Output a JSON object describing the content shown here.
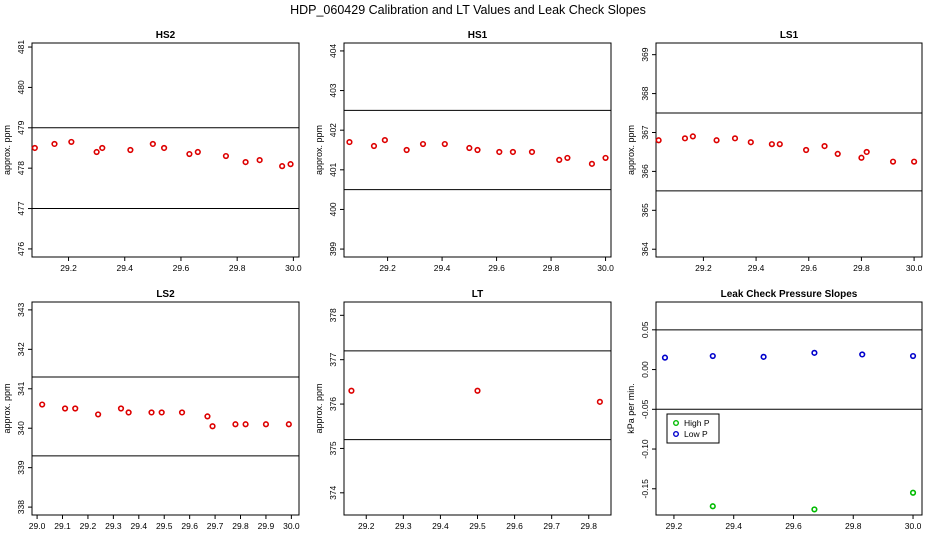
{
  "figure": {
    "title": "HDP_060429  Calibration and LT Values and Leak Check Slopes"
  },
  "colors": {
    "cal_points": "#dd0000",
    "high_p": "#00bb00",
    "low_p": "#0000cc",
    "ref_line": "#000000"
  },
  "chart_data": [
    {
      "type": "scatter",
      "title": "HS2",
      "ylabel": "approx. ppm",
      "xlim": [
        29.07,
        30.02
      ],
      "ylim": [
        475.8,
        481.1
      ],
      "xticks": [
        29.2,
        29.4,
        29.6,
        29.8,
        30.0
      ],
      "xtick_labels": [
        "29.2",
        "29.4",
        "29.6",
        "29.8",
        "30.0"
      ],
      "yticks": [
        476,
        477,
        478,
        479,
        480,
        481
      ],
      "ytick_labels": [
        "476",
        "477",
        "478",
        "479",
        "480",
        "481"
      ],
      "hlines": [
        479.0,
        477.0
      ],
      "series": [
        {
          "color": "#dd0000",
          "x": [
            29.08,
            29.15,
            29.21,
            29.3,
            29.32,
            29.42,
            29.5,
            29.54,
            29.63,
            29.66,
            29.76,
            29.83,
            29.88,
            29.96,
            29.99
          ],
          "y": [
            478.5,
            478.6,
            478.65,
            478.4,
            478.5,
            478.45,
            478.6,
            478.5,
            478.35,
            478.4,
            478.3,
            478.15,
            478.2,
            478.05,
            478.1
          ]
        }
      ]
    },
    {
      "type": "scatter",
      "title": "HS1",
      "ylabel": "approx. ppm",
      "xlim": [
        29.04,
        30.02
      ],
      "ylim": [
        398.8,
        404.2
      ],
      "xticks": [
        29.2,
        29.4,
        29.6,
        29.8,
        30.0
      ],
      "xtick_labels": [
        "29.2",
        "29.4",
        "29.6",
        "29.8",
        "30.0"
      ],
      "yticks": [
        399,
        400,
        401,
        402,
        403,
        404
      ],
      "ytick_labels": [
        "399",
        "400",
        "401",
        "402",
        "403",
        "404"
      ],
      "hlines": [
        402.5,
        400.5
      ],
      "series": [
        {
          "color": "#dd0000",
          "x": [
            29.06,
            29.15,
            29.19,
            29.27,
            29.33,
            29.41,
            29.5,
            29.53,
            29.61,
            29.66,
            29.73,
            29.83,
            29.86,
            29.95,
            30.0
          ],
          "y": [
            401.7,
            401.6,
            401.75,
            401.5,
            401.65,
            401.65,
            401.55,
            401.5,
            401.45,
            401.45,
            401.45,
            401.25,
            401.3,
            401.15,
            401.3
          ]
        }
      ]
    },
    {
      "type": "scatter",
      "title": "LS1",
      "ylabel": "approx. ppm",
      "xlim": [
        29.02,
        30.03
      ],
      "ylim": [
        363.8,
        369.3
      ],
      "xticks": [
        29.2,
        29.4,
        29.6,
        29.8,
        30.0
      ],
      "xtick_labels": [
        "29.2",
        "29.4",
        "29.6",
        "29.8",
        "30.0"
      ],
      "yticks": [
        364,
        365,
        366,
        367,
        368,
        369
      ],
      "ytick_labels": [
        "364",
        "365",
        "366",
        "367",
        "368",
        "369"
      ],
      "hlines": [
        367.5,
        365.5
      ],
      "series": [
        {
          "color": "#dd0000",
          "x": [
            29.03,
            29.13,
            29.16,
            29.25,
            29.32,
            29.38,
            29.46,
            29.49,
            29.59,
            29.66,
            29.71,
            29.8,
            29.82,
            29.92,
            30.0
          ],
          "y": [
            366.8,
            366.85,
            366.9,
            366.8,
            366.85,
            366.75,
            366.7,
            366.7,
            366.55,
            366.65,
            366.45,
            366.35,
            366.5,
            366.25,
            366.25
          ]
        }
      ]
    },
    {
      "type": "scatter",
      "title": "LS2",
      "ylabel": "approx. ppm",
      "xlim": [
        28.98,
        30.03
      ],
      "ylim": [
        337.8,
        343.2
      ],
      "xticks": [
        29.0,
        29.1,
        29.2,
        29.3,
        29.4,
        29.5,
        29.6,
        29.7,
        29.8,
        29.9,
        30.0
      ],
      "xtick_labels": [
        "29.0",
        "29.1",
        "29.2",
        "29.3",
        "29.4",
        "29.5",
        "29.6",
        "29.7",
        "29.8",
        "29.9",
        "30.0"
      ],
      "yticks": [
        338,
        339,
        340,
        341,
        342,
        343
      ],
      "ytick_labels": [
        "338",
        "339",
        "340",
        "341",
        "342",
        "343"
      ],
      "hlines": [
        341.3,
        339.3
      ],
      "series": [
        {
          "color": "#dd0000",
          "x": [
            29.02,
            29.11,
            29.15,
            29.24,
            29.33,
            29.36,
            29.45,
            29.49,
            29.57,
            29.67,
            29.69,
            29.78,
            29.82,
            29.9,
            29.99
          ],
          "y": [
            340.6,
            340.5,
            340.5,
            340.35,
            340.5,
            340.4,
            340.4,
            340.4,
            340.4,
            340.3,
            340.05,
            340.1,
            340.1,
            340.1,
            340.1
          ]
        }
      ]
    },
    {
      "type": "scatter",
      "title": "LT",
      "ylabel": "approx. ppm",
      "xlim": [
        29.14,
        29.86
      ],
      "ylim": [
        373.5,
        378.3
      ],
      "xticks": [
        29.2,
        29.3,
        29.4,
        29.5,
        29.6,
        29.7,
        29.8
      ],
      "xtick_labels": [
        "29.2",
        "29.3",
        "29.4",
        "29.5",
        "29.6",
        "29.7",
        "29.8"
      ],
      "yticks": [
        374,
        375,
        376,
        377,
        378
      ],
      "ytick_labels": [
        "374",
        "375",
        "376",
        "377",
        "378"
      ],
      "hlines": [
        377.2,
        375.2
      ],
      "series": [
        {
          "color": "#dd0000",
          "x": [
            29.16,
            29.5,
            29.83
          ],
          "y": [
            376.3,
            376.3,
            376.05
          ]
        }
      ]
    },
    {
      "type": "scatter",
      "title": "Leak Check Pressure Slopes",
      "ylabel": "kPa per min.",
      "xlim": [
        29.14,
        30.03
      ],
      "ylim": [
        -0.183,
        0.085
      ],
      "xticks": [
        29.2,
        29.4,
        29.6,
        29.8,
        30.0
      ],
      "xtick_labels": [
        "29.2",
        "29.4",
        "29.6",
        "29.8",
        "30.0"
      ],
      "yticks": [
        -0.15,
        -0.1,
        -0.05,
        0.0,
        0.05
      ],
      "ytick_labels": [
        "-0.15",
        "-0.10",
        "-0.05",
        "0.00",
        "0.05"
      ],
      "hlines": [
        0.05,
        -0.05
      ],
      "legend": {
        "entries": [
          "High P",
          "Low P"
        ]
      },
      "series": [
        {
          "name": "High P",
          "color": "#00bb00",
          "x": [
            29.33,
            29.67,
            30.0
          ],
          "y": [
            -0.172,
            -0.176,
            -0.155
          ]
        },
        {
          "name": "Low P",
          "color": "#0000cc",
          "x": [
            29.17,
            29.33,
            29.5,
            29.67,
            29.83,
            30.0
          ],
          "y": [
            0.015,
            0.017,
            0.016,
            0.021,
            0.019,
            0.017
          ]
        }
      ]
    }
  ]
}
